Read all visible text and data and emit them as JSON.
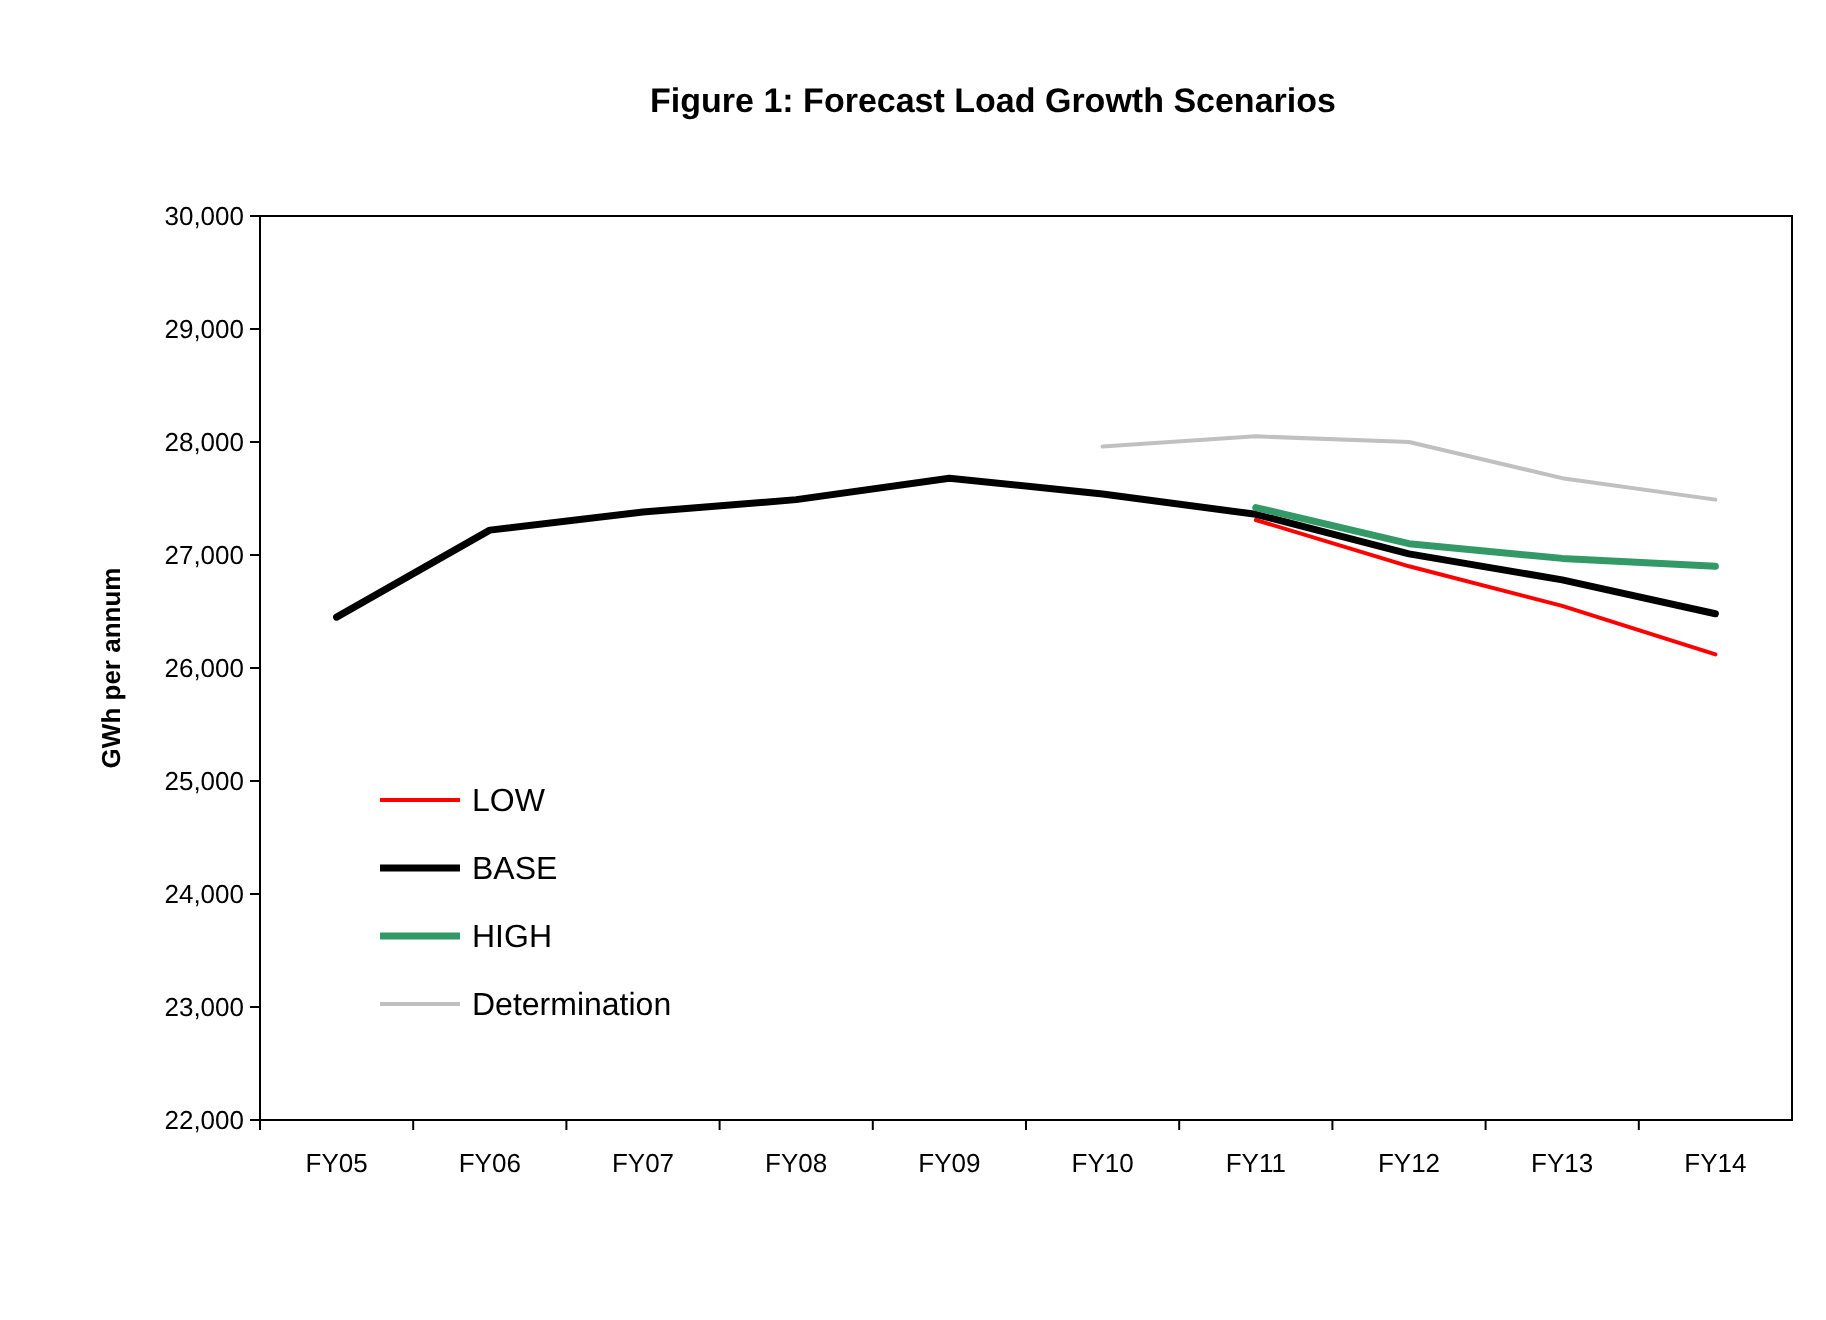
{
  "chart_data": {
    "type": "line",
    "title": "Figure 1: Forecast Load Growth Scenarios",
    "ylabel": "GWh per annum",
    "categories": [
      "FY05",
      "FY06",
      "FY07",
      "FY08",
      "FY09",
      "FY10",
      "FY11",
      "FY12",
      "FY13",
      "FY14"
    ],
    "series": [
      {
        "name": "LOW",
        "color": "#ff0000",
        "values": [
          null,
          null,
          null,
          null,
          null,
          null,
          27310,
          26900,
          26550,
          26120
        ]
      },
      {
        "name": "BASE",
        "color": "#000000",
        "values": [
          26450,
          27220,
          27380,
          27490,
          27680,
          27540,
          27360,
          27010,
          26780,
          26480
        ]
      },
      {
        "name": "HIGH",
        "color": "#339966",
        "values": [
          null,
          null,
          null,
          null,
          null,
          null,
          27420,
          27100,
          26970,
          26900
        ]
      },
      {
        "name": "Determination",
        "color": "#c0c0c0",
        "values": [
          null,
          null,
          null,
          null,
          null,
          27960,
          28050,
          28000,
          27680,
          27490
        ]
      }
    ],
    "ylim": [
      22000,
      30000
    ],
    "yticks": [
      {
        "value": 22000,
        "label": "22,000"
      },
      {
        "value": 23000,
        "label": "23,000"
      },
      {
        "value": 24000,
        "label": "24,000"
      },
      {
        "value": 25000,
        "label": "25,000"
      },
      {
        "value": 26000,
        "label": "26,000"
      },
      {
        "value": 27000,
        "label": "27,000"
      },
      {
        "value": 28000,
        "label": "28,000"
      },
      {
        "value": 29000,
        "label": "29,000"
      },
      {
        "value": 30000,
        "label": "30,000"
      }
    ],
    "legend": "bottom left",
    "grid": false,
    "marker": "none",
    "line_style": "solid"
  }
}
